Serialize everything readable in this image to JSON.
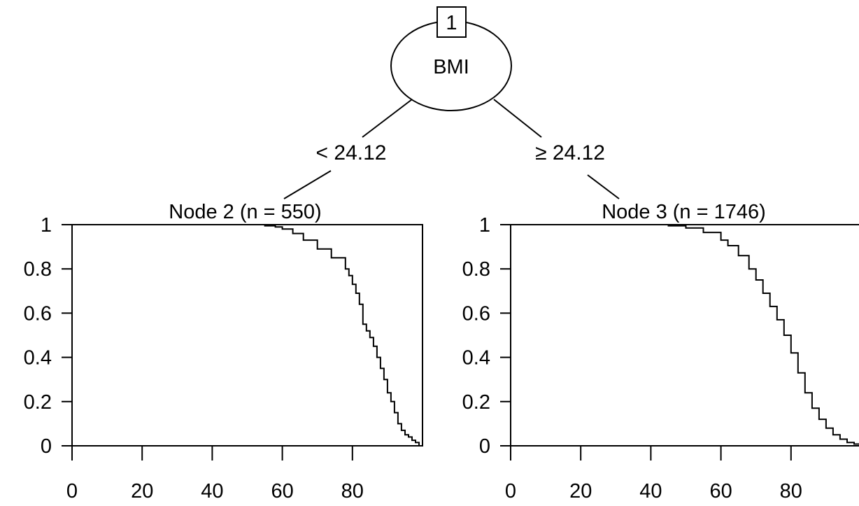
{
  "tree": {
    "root": {
      "id": "1",
      "variable": "BMI"
    },
    "splits": {
      "left": "< 24.12",
      "right": "≥ 24.12"
    }
  },
  "chart_data": [
    {
      "type": "line",
      "title": "Node 2 (n = 550)",
      "xlim": [
        0,
        100
      ],
      "ylim": [
        0,
        1
      ],
      "xticks": [
        "0",
        "20",
        "40",
        "60",
        "80"
      ],
      "yticks": [
        "0",
        "0.2",
        "0.4",
        "0.6",
        "0.8",
        "1"
      ],
      "series": [
        {
          "x": [
            0,
            50,
            55,
            58,
            60,
            63,
            66,
            70,
            74,
            78,
            79,
            80,
            81,
            82,
            83,
            84,
            85,
            86,
            87,
            88,
            89,
            90,
            91,
            92,
            93,
            94,
            95,
            96,
            97,
            98,
            99
          ],
          "y": [
            1,
            1,
            0.995,
            0.99,
            0.98,
            0.96,
            0.93,
            0.89,
            0.85,
            0.8,
            0.77,
            0.73,
            0.69,
            0.64,
            0.55,
            0.52,
            0.49,
            0.45,
            0.4,
            0.35,
            0.3,
            0.24,
            0.2,
            0.15,
            0.1,
            0.07,
            0.05,
            0.04,
            0.025,
            0.015,
            0
          ]
        }
      ]
    },
    {
      "type": "line",
      "title": "Node 3 (n = 1746)",
      "xlim": [
        0,
        100
      ],
      "ylim": [
        0,
        1
      ],
      "xticks": [
        "0",
        "20",
        "40",
        "60",
        "80"
      ],
      "yticks": [
        "0",
        "0.2",
        "0.4",
        "0.6",
        "0.8",
        "1"
      ],
      "series": [
        {
          "x": [
            0,
            40,
            45,
            50,
            55,
            60,
            62,
            65,
            68,
            70,
            72,
            74,
            76,
            78,
            80,
            82,
            84,
            86,
            88,
            90,
            92,
            94,
            96,
            98,
            100
          ],
          "y": [
            1,
            1,
            0.995,
            0.985,
            0.965,
            0.93,
            0.905,
            0.86,
            0.8,
            0.75,
            0.69,
            0.63,
            0.57,
            0.5,
            0.42,
            0.33,
            0.24,
            0.17,
            0.12,
            0.08,
            0.05,
            0.03,
            0.015,
            0.008,
            0
          ]
        }
      ]
    }
  ]
}
